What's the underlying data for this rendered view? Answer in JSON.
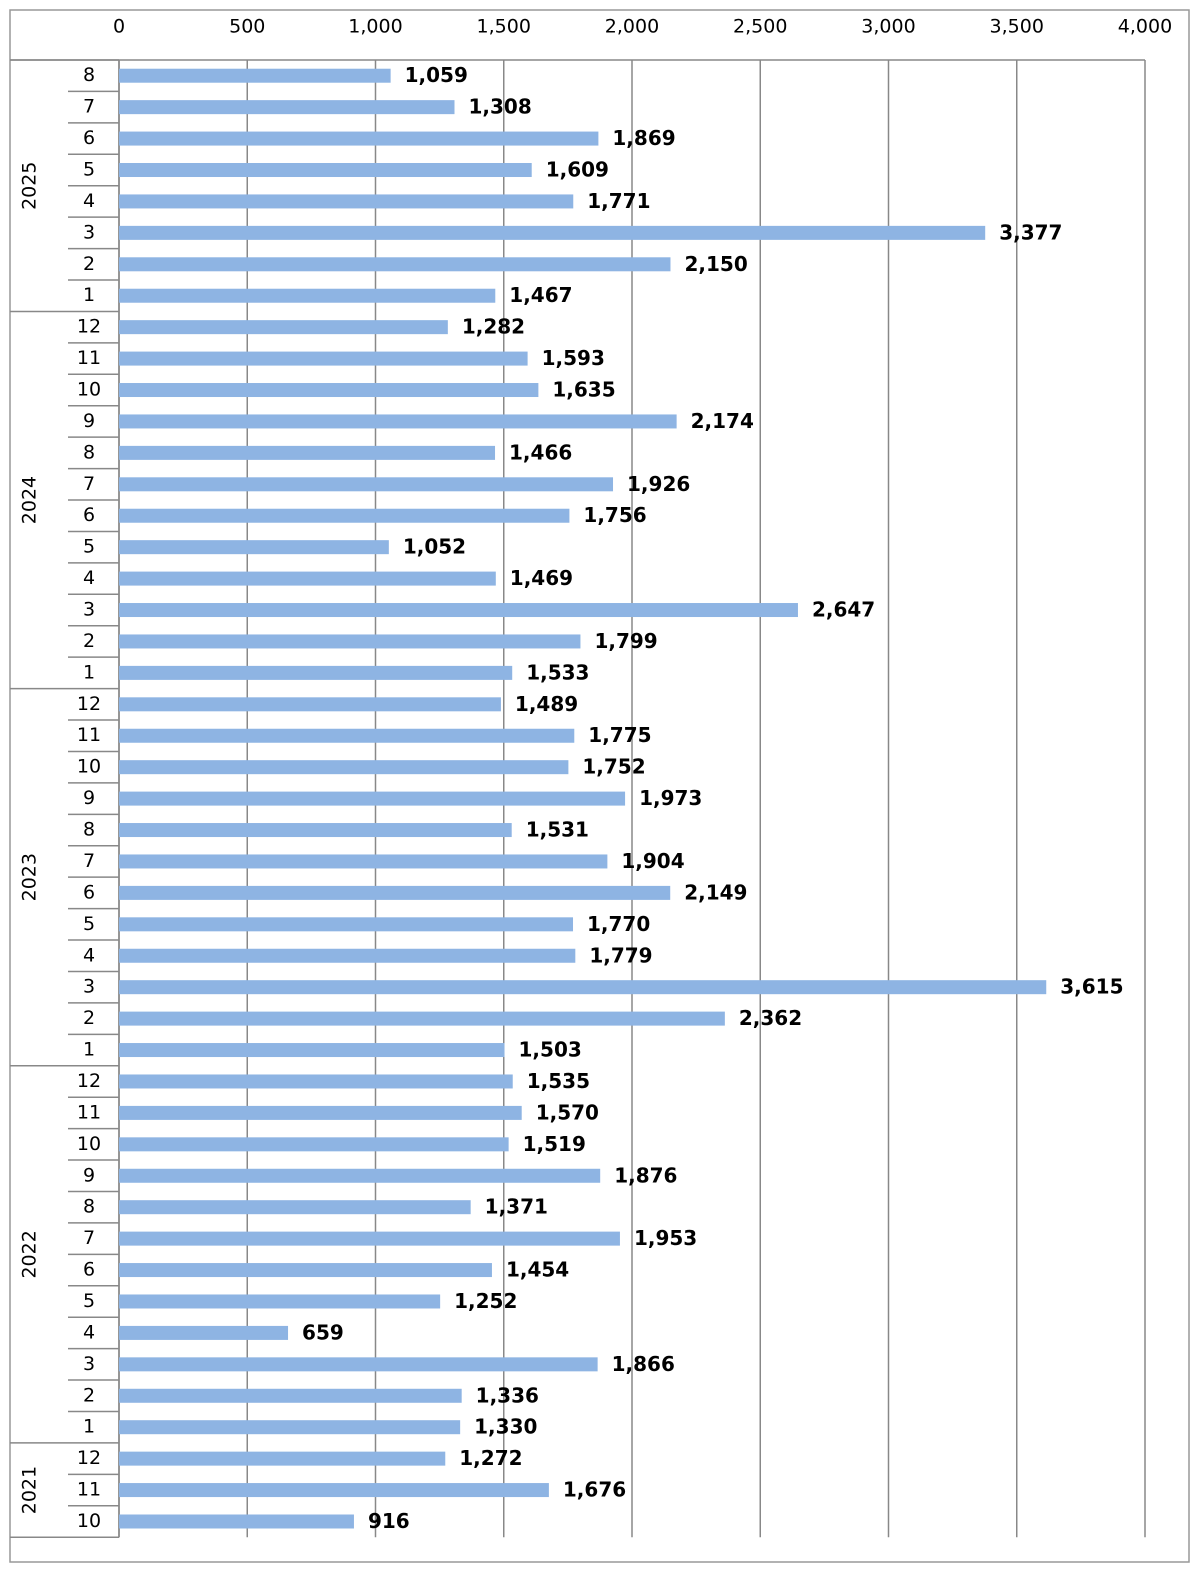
{
  "chart_data": {
    "type": "bar",
    "orientation": "horizontal",
    "color": "#8eb4e3",
    "grid": true,
    "xlim": [
      0,
      4000
    ],
    "xticks": [
      0,
      500,
      {
        "value": 1000,
        "label": "1,000"
      },
      {
        "value": 1500,
        "label": "1,500"
      },
      {
        "value": 2000,
        "label": "2,000"
      },
      {
        "value": 2500,
        "label": "2,500"
      },
      {
        "value": 3000,
        "label": "3,000"
      },
      {
        "value": 3500,
        "label": "3,500"
      },
      {
        "value": 4000,
        "label": "4,000"
      }
    ],
    "groups": [
      {
        "name": "2025",
        "categories": [
          "8",
          "7",
          "6",
          "5",
          "4",
          "3",
          "2",
          "1"
        ],
        "values": [
          1059,
          1308,
          1869,
          1609,
          1771,
          3377,
          2150,
          1467
        ],
        "value_labels": [
          "1,059",
          "1,308",
          "1,869",
          "1,609",
          "1,771",
          "3,377",
          "2,150",
          "1,467"
        ]
      },
      {
        "name": "2024",
        "categories": [
          "12",
          "11",
          "10",
          "9",
          "8",
          "7",
          "6",
          "5",
          "4",
          "3",
          "2",
          "1"
        ],
        "values": [
          1282,
          1593,
          1635,
          2174,
          1466,
          1926,
          1756,
          1052,
          1469,
          2647,
          1799,
          1533
        ],
        "value_labels": [
          "1,282",
          "1,593",
          "1,635",
          "2,174",
          "1,466",
          "1,926",
          "1,756",
          "1,052",
          "1,469",
          "2,647",
          "1,799",
          "1,533"
        ]
      },
      {
        "name": "2023",
        "categories": [
          "12",
          "11",
          "10",
          "9",
          "8",
          "7",
          "6",
          "5",
          "4",
          "3",
          "2",
          "1"
        ],
        "values": [
          1489,
          1775,
          1752,
          1973,
          1531,
          1904,
          2149,
          1770,
          1779,
          3615,
          2362,
          1503
        ],
        "value_labels": [
          "1,489",
          "1,775",
          "1,752",
          "1,973",
          "1,531",
          "1,904",
          "2,149",
          "1,770",
          "1,779",
          "3,615",
          "2,362",
          "1,503"
        ]
      },
      {
        "name": "2022",
        "categories": [
          "12",
          "11",
          "10",
          "9",
          "8",
          "7",
          "6",
          "5",
          "4",
          "3",
          "2",
          "1"
        ],
        "values": [
          1535,
          1570,
          1519,
          1876,
          1371,
          1953,
          1454,
          1252,
          659,
          1866,
          1336,
          1330
        ],
        "value_labels": [
          "1,535",
          "1,570",
          "1,519",
          "1,876",
          "1,371",
          "1,953",
          "1,454",
          "1,252",
          "659",
          "1,866",
          "1,336",
          "1,330"
        ]
      },
      {
        "name": "2021",
        "categories": [
          "12",
          "11",
          "10"
        ],
        "values": [
          1272,
          1676,
          916
        ],
        "value_labels": [
          "1,272",
          "1,676",
          "916"
        ]
      }
    ]
  }
}
